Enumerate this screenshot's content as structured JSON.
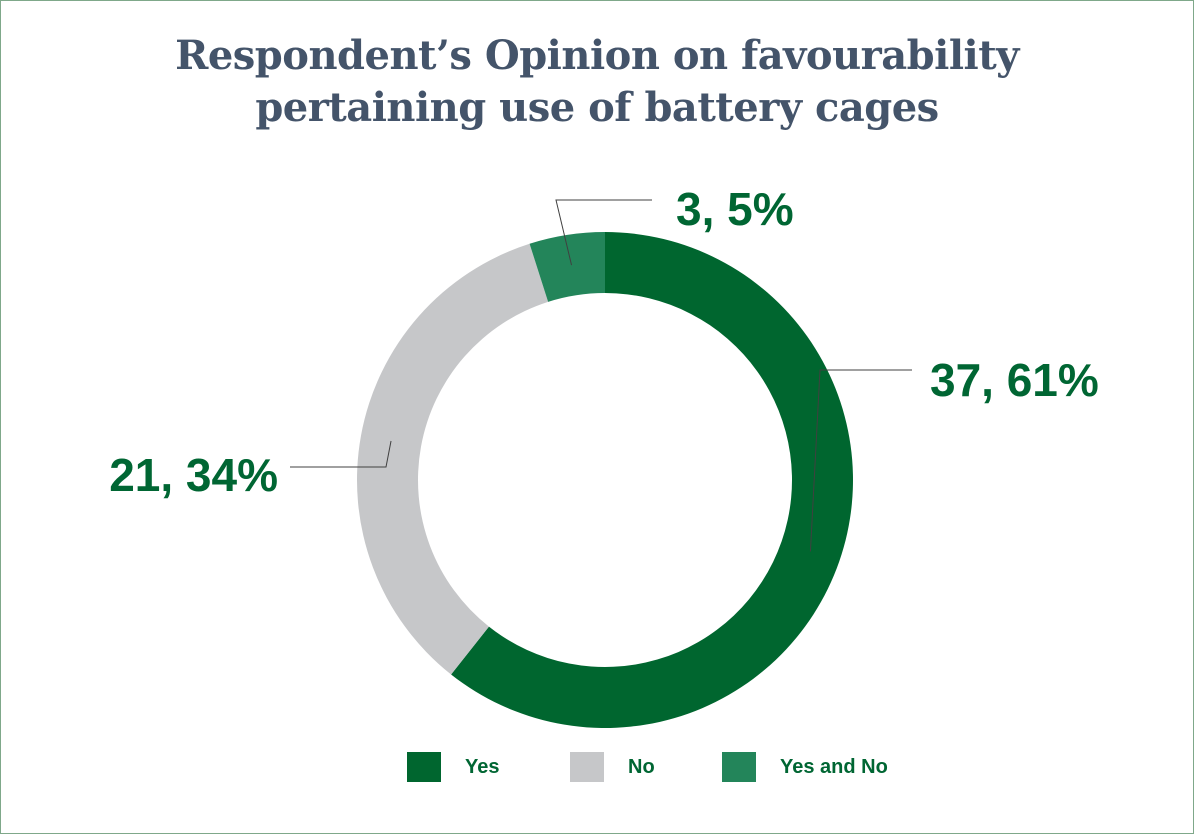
{
  "chart_data": {
    "type": "pie",
    "variant": "donut",
    "title": [
      "Respondent’s Opinion on favourability",
      "pertaining use of battery cages"
    ],
    "slices": [
      {
        "name": "Yes",
        "value": 37,
        "percent": 61,
        "label": "37, 61%",
        "color": "#00662f"
      },
      {
        "name": "No",
        "value": 21,
        "percent": 34,
        "label": "21, 34%",
        "color": "#c6c7c9"
      },
      {
        "name": "Yes and No",
        "value": 3,
        "percent": 5,
        "label": "3, 5%",
        "color": "#23855a"
      }
    ],
    "legend": {
      "position": "bottom",
      "entries": [
        "Yes",
        "No",
        "Yes and No"
      ]
    }
  }
}
